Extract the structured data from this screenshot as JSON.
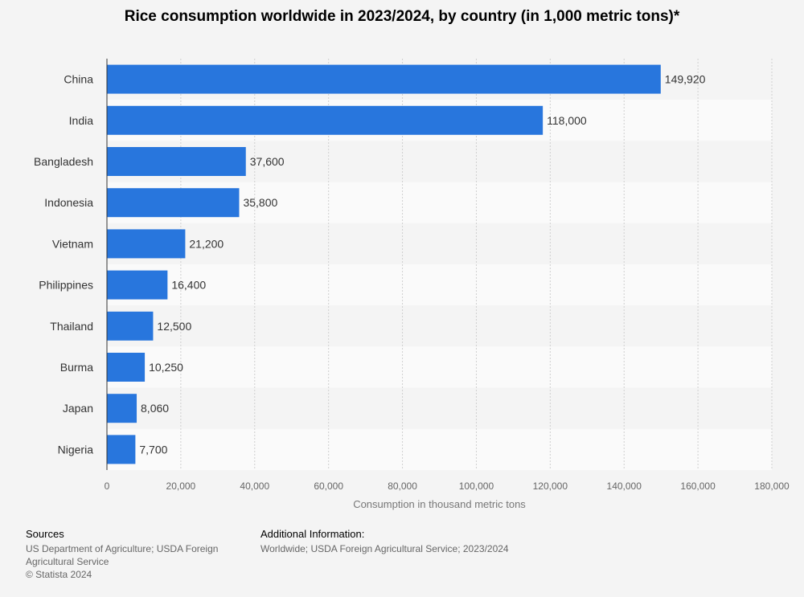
{
  "title": "Rice consumption worldwide in 2023/2024, by country (in 1,000 metric tons)*",
  "chart_data": {
    "type": "bar",
    "orientation": "horizontal",
    "title": "Rice consumption worldwide in 2023/2024, by country (in 1,000 metric tons)*",
    "categories": [
      "China",
      "India",
      "Bangladesh",
      "Indonesia",
      "Vietnam",
      "Philippines",
      "Thailand",
      "Burma",
      "Japan",
      "Nigeria"
    ],
    "values": [
      149920,
      118000,
      37600,
      35800,
      21200,
      16400,
      12500,
      10250,
      8060,
      7700
    ],
    "value_labels": [
      "149,920",
      "118,000",
      "37,600",
      "35,800",
      "21,200",
      "16,400",
      "12,500",
      "10,250",
      "8,060",
      "7,700"
    ],
    "xlabel": "Consumption in thousand metric tons",
    "ylabel": "",
    "xlim": [
      0,
      180000
    ],
    "ticks": [
      0,
      20000,
      40000,
      60000,
      80000,
      100000,
      120000,
      140000,
      160000,
      180000
    ],
    "tick_labels": [
      "0",
      "20,000",
      "40,000",
      "60,000",
      "80,000",
      "100,000",
      "120,000",
      "140,000",
      "160,000",
      "180,000"
    ],
    "grid": true,
    "bar_color": "#2876dd",
    "row_band_colors": [
      "#f4f4f4",
      "#fafafa"
    ]
  },
  "footer": {
    "sources_heading": "Sources",
    "sources_text": "US Department of Agriculture; USDA Foreign Agricultural Service",
    "copyright": "© Statista 2024",
    "additional_heading": "Additional Information:",
    "additional_text": "Worldwide; USDA Foreign Agricultural Service; 2023/2024"
  }
}
